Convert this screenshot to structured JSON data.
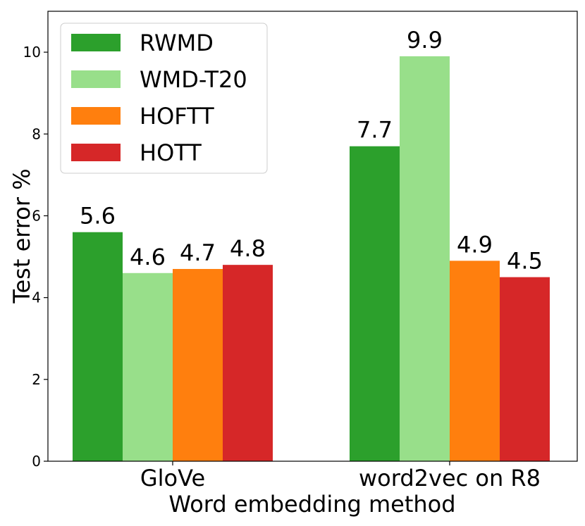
{
  "chart_data": {
    "type": "bar",
    "categories": [
      "GloVe",
      "word2vec on R8"
    ],
    "series": [
      {
        "name": "RWMD",
        "color": "#2ca02c",
        "values": [
          5.6,
          7.7
        ]
      },
      {
        "name": "WMD-T20",
        "color": "#98df8a",
        "values": [
          4.6,
          9.9
        ]
      },
      {
        "name": "HOFTT",
        "color": "#ff7f0e",
        "values": [
          4.7,
          4.9
        ]
      },
      {
        "name": "HOTT",
        "color": "#d62728",
        "values": [
          4.8,
          4.5
        ]
      }
    ],
    "data_labels": [
      [
        "5.6",
        "7.7"
      ],
      [
        "4.6",
        "9.9"
      ],
      [
        "4.7",
        "4.9"
      ],
      [
        "4.8",
        "4.5"
      ]
    ],
    "xlabel": "Word embedding method",
    "ylabel": "Test error %",
    "ylim": [
      0,
      11
    ],
    "yticks": [
      0,
      2,
      4,
      6,
      8,
      10
    ],
    "grid": false,
    "legend_position": "top-left"
  }
}
